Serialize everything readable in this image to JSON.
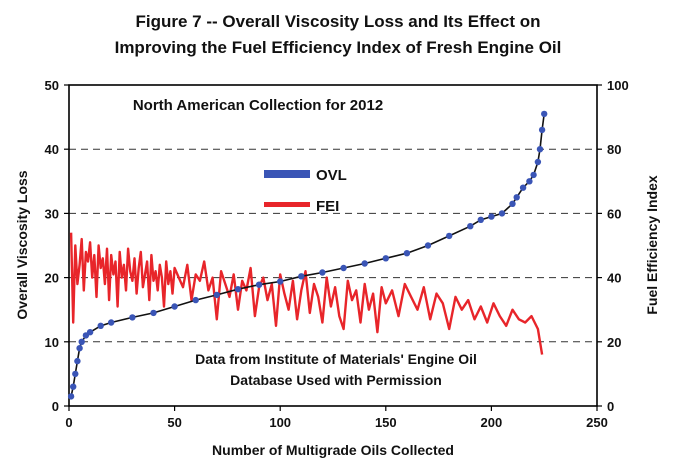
{
  "chart_data": {
    "type": "line",
    "title": "Figure 7 -- Overall Viscosity Loss and Its Effect on",
    "subtitle": "Improving the Fuel Efficiency Index of Fresh Engine Oil",
    "xlabel": "Number of Multigrade Oils Collected",
    "ylabel_left": "Overall Viscosity Loss",
    "ylabel_right": "Fuel Efficiency Index",
    "xlim": [
      0,
      250
    ],
    "ylim_left": [
      0,
      50
    ],
    "ylim_right": [
      0,
      100
    ],
    "x_ticks": [
      "0",
      "50",
      "100",
      "150",
      "200",
      "250"
    ],
    "y_ticks_left": [
      "0",
      "10",
      "20",
      "30",
      "40",
      "50"
    ],
    "y_ticks_right": [
      "0",
      "20",
      "40",
      "60",
      "80",
      "100"
    ],
    "grid": "dashed horizontal lines at right-axis 20, 40, 60, 80",
    "legend_position": "center-left",
    "annotation_top": "North American Collection for 2012",
    "annotation_bottom_line1": "Data from Institute of Materials' Engine Oil",
    "annotation_bottom_line2": "Database Used with Permission",
    "series": [
      {
        "name": "OVL",
        "axis": "left",
        "color": "#3a55b6",
        "style": "markers",
        "x": [
          1,
          2,
          3,
          4,
          5,
          6,
          8,
          10,
          15,
          20,
          30,
          40,
          50,
          60,
          70,
          80,
          90,
          100,
          110,
          120,
          130,
          140,
          150,
          160,
          170,
          180,
          190,
          195,
          200,
          205,
          210,
          212,
          215,
          218,
          220,
          222,
          223,
          224,
          225
        ],
        "values": [
          1.5,
          3,
          5,
          7,
          9,
          10,
          11,
          11.5,
          12.5,
          13,
          13.8,
          14.5,
          15.5,
          16.5,
          17.3,
          18.2,
          18.9,
          19.4,
          20.2,
          20.8,
          21.5,
          22.2,
          23,
          23.8,
          25,
          26.5,
          28,
          29,
          29.5,
          30,
          31.5,
          32.5,
          34,
          35,
          36,
          38,
          40,
          43,
          45.5
        ]
      },
      {
        "name": "FEI",
        "axis": "right",
        "color": "#e8252a",
        "style": "line",
        "x": [
          1,
          2,
          3,
          4,
          5,
          6,
          7,
          8,
          9,
          10,
          11,
          12,
          13,
          14,
          15,
          16,
          17,
          18,
          19,
          20,
          21,
          22,
          23,
          24,
          25,
          26,
          27,
          28,
          29,
          30,
          31,
          32,
          33,
          34,
          35,
          36,
          37,
          38,
          39,
          40,
          41,
          42,
          43,
          44,
          45,
          46,
          47,
          48,
          49,
          50,
          52,
          54,
          56,
          58,
          60,
          62,
          64,
          66,
          68,
          70,
          72,
          74,
          76,
          78,
          80,
          82,
          84,
          86,
          88,
          90,
          92,
          94,
          96,
          98,
          100,
          102,
          104,
          106,
          108,
          110,
          112,
          114,
          116,
          118,
          120,
          122,
          124,
          126,
          128,
          130,
          132,
          134,
          136,
          138,
          140,
          142,
          144,
          146,
          148,
          150,
          153,
          156,
          159,
          162,
          165,
          168,
          171,
          174,
          177,
          180,
          183,
          186,
          189,
          192,
          195,
          198,
          201,
          204,
          207,
          210,
          213,
          216,
          219,
          222,
          224
        ],
        "values": [
          54,
          26,
          50,
          38,
          44,
          52,
          36,
          48,
          45,
          51,
          40,
          47,
          34,
          50,
          43,
          46,
          38,
          49,
          33,
          47,
          41,
          45,
          31,
          48,
          40,
          44,
          36,
          49,
          42,
          39,
          46,
          35,
          43,
          48,
          37,
          41,
          45,
          33,
          47,
          39,
          42,
          36,
          44,
          40,
          31,
          45,
          38,
          42,
          35,
          43,
          40,
          37,
          44,
          33,
          41,
          39,
          45,
          36,
          40,
          27,
          42,
          38,
          34,
          41,
          30,
          39,
          36,
          43,
          28,
          37,
          40,
          33,
          38,
          25,
          41,
          35,
          30,
          39,
          27,
          36,
          42,
          29,
          38,
          34,
          26,
          40,
          31,
          37,
          28,
          24,
          39,
          33,
          36,
          26,
          38,
          30,
          35,
          23,
          37,
          32,
          36,
          28,
          38,
          34,
          30,
          37,
          27,
          35,
          32,
          24,
          34,
          30,
          33,
          27,
          31,
          26,
          32,
          28,
          25,
          30,
          27,
          26,
          28,
          24,
          16
        ]
      }
    ]
  }
}
